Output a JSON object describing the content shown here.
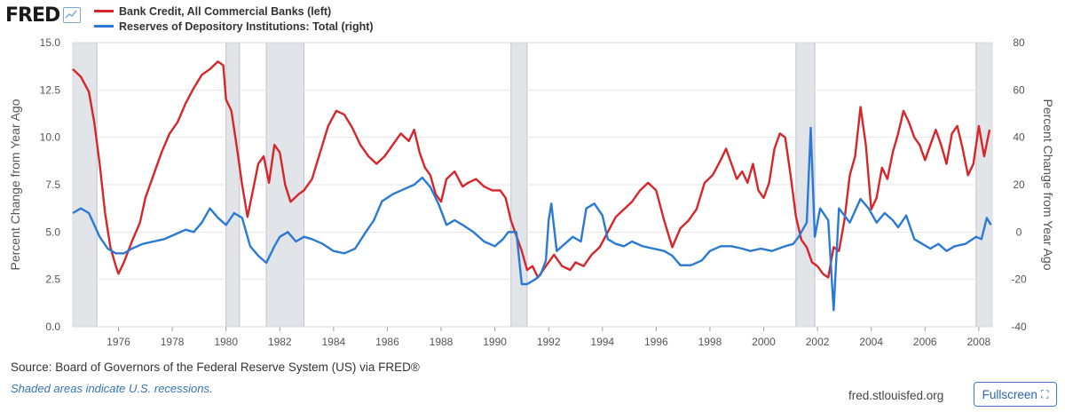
{
  "logo": {
    "text": "FRED",
    "icon": "line-graph-icon"
  },
  "footer": {
    "source": "Source: Board of Governors of the Federal Reserve System (US) via FRED®",
    "note": "Shaded areas indicate U.S. recessions.",
    "site": "fred.stlouisfed.org",
    "fullscreen_label": "Fullscreen",
    "fullscreen_icon": "expand-icon"
  },
  "chart_data": {
    "type": "line",
    "title": "",
    "xlabel": "",
    "ylabel_left": "Percent Change from Year Ago",
    "ylabel_right": "Percent Change from Year Ago",
    "xlim": [
      1974.3,
      2008.5
    ],
    "ylim_left": [
      0,
      15
    ],
    "ylim_right": [
      -40,
      80
    ],
    "x_ticks": [
      "1976",
      "1978",
      "1980",
      "1982",
      "1984",
      "1986",
      "1988",
      "1990",
      "1992",
      "1994",
      "1996",
      "1998",
      "2000",
      "2002",
      "2004",
      "2006",
      "2008"
    ],
    "y_ticks_left": [
      "0.0",
      "2.5",
      "5.0",
      "7.5",
      "10.0",
      "12.5",
      "15.0"
    ],
    "y_ticks_right": [
      "-40",
      "-20",
      "0",
      "20",
      "40",
      "60",
      "80"
    ],
    "grid": true,
    "legend_position": "top-left",
    "recessions": [
      [
        1973.9,
        1975.2
      ],
      [
        1980.0,
        1980.5
      ],
      [
        1981.5,
        1982.9
      ],
      [
        1990.6,
        1991.2
      ],
      [
        2001.2,
        2001.9
      ],
      [
        2007.9,
        2008.5
      ]
    ],
    "series": [
      {
        "name": "Bank Credit, All Commercial Banks (left)",
        "axis": "left",
        "color": "#d6262a",
        "points": [
          [
            1974.3,
            13.6
          ],
          [
            1974.6,
            13.2
          ],
          [
            1974.9,
            12.4
          ],
          [
            1975.1,
            10.8
          ],
          [
            1975.3,
            8.6
          ],
          [
            1975.5,
            6.0
          ],
          [
            1975.7,
            4.2
          ],
          [
            1975.9,
            3.2
          ],
          [
            1976.0,
            2.8
          ],
          [
            1976.2,
            3.4
          ],
          [
            1976.5,
            4.5
          ],
          [
            1976.8,
            5.5
          ],
          [
            1977.0,
            6.8
          ],
          [
            1977.3,
            8.0
          ],
          [
            1977.6,
            9.2
          ],
          [
            1977.9,
            10.2
          ],
          [
            1978.2,
            10.8
          ],
          [
            1978.5,
            11.8
          ],
          [
            1978.8,
            12.6
          ],
          [
            1979.1,
            13.3
          ],
          [
            1979.4,
            13.6
          ],
          [
            1979.7,
            14.0
          ],
          [
            1979.9,
            13.8
          ],
          [
            1980.0,
            12.0
          ],
          [
            1980.2,
            11.4
          ],
          [
            1980.4,
            9.5
          ],
          [
            1980.6,
            7.5
          ],
          [
            1980.8,
            5.8
          ],
          [
            1981.0,
            7.2
          ],
          [
            1981.2,
            8.6
          ],
          [
            1981.4,
            9.0
          ],
          [
            1981.6,
            7.6
          ],
          [
            1981.8,
            9.6
          ],
          [
            1982.0,
            9.2
          ],
          [
            1982.2,
            7.5
          ],
          [
            1982.4,
            6.6
          ],
          [
            1982.7,
            7.0
          ],
          [
            1982.9,
            7.2
          ],
          [
            1983.2,
            7.8
          ],
          [
            1983.5,
            9.2
          ],
          [
            1983.8,
            10.6
          ],
          [
            1984.1,
            11.4
          ],
          [
            1984.4,
            11.2
          ],
          [
            1984.7,
            10.5
          ],
          [
            1985.0,
            9.6
          ],
          [
            1985.3,
            9.0
          ],
          [
            1985.6,
            8.6
          ],
          [
            1985.9,
            9.0
          ],
          [
            1986.2,
            9.6
          ],
          [
            1986.5,
            10.2
          ],
          [
            1986.8,
            9.8
          ],
          [
            1987.0,
            10.4
          ],
          [
            1987.2,
            9.2
          ],
          [
            1987.4,
            8.4
          ],
          [
            1987.6,
            8.0
          ],
          [
            1987.8,
            7.0
          ],
          [
            1988.0,
            6.6
          ],
          [
            1988.2,
            7.8
          ],
          [
            1988.5,
            8.2
          ],
          [
            1988.8,
            7.4
          ],
          [
            1989.0,
            7.6
          ],
          [
            1989.3,
            7.8
          ],
          [
            1989.6,
            7.4
          ],
          [
            1989.9,
            7.2
          ],
          [
            1990.2,
            7.2
          ],
          [
            1990.4,
            6.8
          ],
          [
            1990.6,
            5.6
          ],
          [
            1990.8,
            4.8
          ],
          [
            1991.0,
            4.0
          ],
          [
            1991.2,
            3.0
          ],
          [
            1991.4,
            3.2
          ],
          [
            1991.6,
            2.6
          ],
          [
            1991.9,
            3.2
          ],
          [
            1992.2,
            3.8
          ],
          [
            1992.5,
            3.2
          ],
          [
            1992.8,
            3.0
          ],
          [
            1993.0,
            3.4
          ],
          [
            1993.3,
            3.2
          ],
          [
            1993.6,
            3.8
          ],
          [
            1993.9,
            4.2
          ],
          [
            1994.2,
            5.0
          ],
          [
            1994.5,
            5.8
          ],
          [
            1994.8,
            6.2
          ],
          [
            1995.1,
            6.6
          ],
          [
            1995.4,
            7.2
          ],
          [
            1995.7,
            7.6
          ],
          [
            1996.0,
            7.2
          ],
          [
            1996.3,
            5.6
          ],
          [
            1996.6,
            4.2
          ],
          [
            1996.9,
            5.2
          ],
          [
            1997.2,
            5.6
          ],
          [
            1997.5,
            6.2
          ],
          [
            1997.8,
            7.6
          ],
          [
            1998.1,
            8.0
          ],
          [
            1998.4,
            8.8
          ],
          [
            1998.6,
            9.4
          ],
          [
            1998.8,
            8.6
          ],
          [
            1999.0,
            7.8
          ],
          [
            1999.2,
            8.2
          ],
          [
            1999.4,
            7.6
          ],
          [
            1999.6,
            8.6
          ],
          [
            1999.8,
            7.2
          ],
          [
            2000.0,
            6.8
          ],
          [
            2000.2,
            7.6
          ],
          [
            2000.4,
            9.4
          ],
          [
            2000.6,
            10.2
          ],
          [
            2000.8,
            10.0
          ],
          [
            2001.0,
            8.0
          ],
          [
            2001.2,
            5.8
          ],
          [
            2001.4,
            4.6
          ],
          [
            2001.6,
            4.2
          ],
          [
            2001.8,
            3.4
          ],
          [
            2002.0,
            3.2
          ],
          [
            2002.2,
            2.8
          ],
          [
            2002.4,
            2.6
          ],
          [
            2002.6,
            4.2
          ],
          [
            2002.8,
            4.0
          ],
          [
            2003.0,
            5.6
          ],
          [
            2003.2,
            8.0
          ],
          [
            2003.4,
            9.0
          ],
          [
            2003.6,
            11.6
          ],
          [
            2003.8,
            9.6
          ],
          [
            2004.0,
            6.2
          ],
          [
            2004.2,
            6.8
          ],
          [
            2004.4,
            8.4
          ],
          [
            2004.6,
            7.8
          ],
          [
            2004.8,
            9.2
          ],
          [
            2005.0,
            10.2
          ],
          [
            2005.2,
            11.4
          ],
          [
            2005.4,
            10.8
          ],
          [
            2005.6,
            10.0
          ],
          [
            2005.8,
            9.6
          ],
          [
            2006.0,
            8.8
          ],
          [
            2006.2,
            9.6
          ],
          [
            2006.4,
            10.4
          ],
          [
            2006.6,
            9.6
          ],
          [
            2006.8,
            8.6
          ],
          [
            2007.0,
            10.2
          ],
          [
            2007.2,
            10.6
          ],
          [
            2007.4,
            9.4
          ],
          [
            2007.6,
            8.0
          ],
          [
            2007.8,
            8.6
          ],
          [
            2008.0,
            10.6
          ],
          [
            2008.2,
            9.0
          ],
          [
            2008.4,
            10.4
          ]
        ]
      },
      {
        "name": "Reserves of Depository Institutions: Total (right)",
        "axis": "right",
        "color": "#2a7ad5",
        "points": [
          [
            1974.3,
            8
          ],
          [
            1974.6,
            10
          ],
          [
            1974.9,
            8
          ],
          [
            1975.1,
            3
          ],
          [
            1975.3,
            -2
          ],
          [
            1975.6,
            -7
          ],
          [
            1975.9,
            -9
          ],
          [
            1976.2,
            -9
          ],
          [
            1976.5,
            -7
          ],
          [
            1976.9,
            -5
          ],
          [
            1977.3,
            -4
          ],
          [
            1977.7,
            -3
          ],
          [
            1978.1,
            -1
          ],
          [
            1978.5,
            1
          ],
          [
            1978.8,
            0
          ],
          [
            1979.1,
            4
          ],
          [
            1979.4,
            10
          ],
          [
            1979.7,
            6
          ],
          [
            1980.0,
            3
          ],
          [
            1980.3,
            8
          ],
          [
            1980.6,
            6
          ],
          [
            1980.9,
            -6
          ],
          [
            1981.2,
            -10
          ],
          [
            1981.5,
            -13
          ],
          [
            1981.8,
            -6
          ],
          [
            1982.0,
            -2
          ],
          [
            1982.3,
            0
          ],
          [
            1982.6,
            -4
          ],
          [
            1982.9,
            -2
          ],
          [
            1983.2,
            -3
          ],
          [
            1983.6,
            -5
          ],
          [
            1984.0,
            -8
          ],
          [
            1984.4,
            -9
          ],
          [
            1984.8,
            -7
          ],
          [
            1985.2,
            0
          ],
          [
            1985.5,
            5
          ],
          [
            1985.8,
            13
          ],
          [
            1986.2,
            16
          ],
          [
            1986.6,
            18
          ],
          [
            1987.0,
            20
          ],
          [
            1987.3,
            23
          ],
          [
            1987.6,
            19
          ],
          [
            1987.9,
            12
          ],
          [
            1988.2,
            3
          ],
          [
            1988.5,
            5
          ],
          [
            1988.8,
            3
          ],
          [
            1989.2,
            0
          ],
          [
            1989.6,
            -4
          ],
          [
            1990.0,
            -6
          ],
          [
            1990.3,
            -3
          ],
          [
            1990.5,
            0
          ],
          [
            1990.8,
            0
          ],
          [
            1991.0,
            -22
          ],
          [
            1991.2,
            -22
          ],
          [
            1991.5,
            -20
          ],
          [
            1991.7,
            -18
          ],
          [
            1991.9,
            -12
          ],
          [
            1992.0,
            5
          ],
          [
            1992.1,
            12
          ],
          [
            1992.3,
            -8
          ],
          [
            1992.6,
            -5
          ],
          [
            1992.9,
            -2
          ],
          [
            1993.2,
            -4
          ],
          [
            1993.4,
            10
          ],
          [
            1993.7,
            12
          ],
          [
            1994.0,
            7
          ],
          [
            1994.2,
            -3
          ],
          [
            1994.5,
            -5
          ],
          [
            1994.8,
            -6
          ],
          [
            1995.1,
            -4
          ],
          [
            1995.5,
            -6
          ],
          [
            1995.9,
            -7
          ],
          [
            1996.3,
            -8
          ],
          [
            1996.6,
            -10
          ],
          [
            1996.9,
            -14
          ],
          [
            1997.3,
            -14
          ],
          [
            1997.7,
            -12
          ],
          [
            1998.0,
            -8
          ],
          [
            1998.4,
            -6
          ],
          [
            1998.8,
            -6
          ],
          [
            1999.2,
            -7
          ],
          [
            1999.5,
            -8
          ],
          [
            1999.9,
            -7
          ],
          [
            2000.3,
            -8
          ],
          [
            2000.8,
            -6
          ],
          [
            2001.1,
            -5
          ],
          [
            2001.3,
            -2
          ],
          [
            2001.6,
            4
          ],
          [
            2001.75,
            44
          ],
          [
            2001.9,
            -2
          ],
          [
            2002.1,
            10
          ],
          [
            2002.4,
            5
          ],
          [
            2002.6,
            -33
          ],
          [
            2002.8,
            10
          ],
          [
            2003.2,
            4
          ],
          [
            2003.6,
            14
          ],
          [
            2003.9,
            10
          ],
          [
            2004.2,
            4
          ],
          [
            2004.5,
            8
          ],
          [
            2004.8,
            5
          ],
          [
            2005.0,
            2
          ],
          [
            2005.3,
            7
          ],
          [
            2005.6,
            -3
          ],
          [
            2005.9,
            -5
          ],
          [
            2006.2,
            -7
          ],
          [
            2006.5,
            -5
          ],
          [
            2006.8,
            -8
          ],
          [
            2007.1,
            -6
          ],
          [
            2007.5,
            -5
          ],
          [
            2007.9,
            -2
          ],
          [
            2008.1,
            -3
          ],
          [
            2008.3,
            6
          ],
          [
            2008.45,
            3
          ]
        ]
      }
    ]
  }
}
